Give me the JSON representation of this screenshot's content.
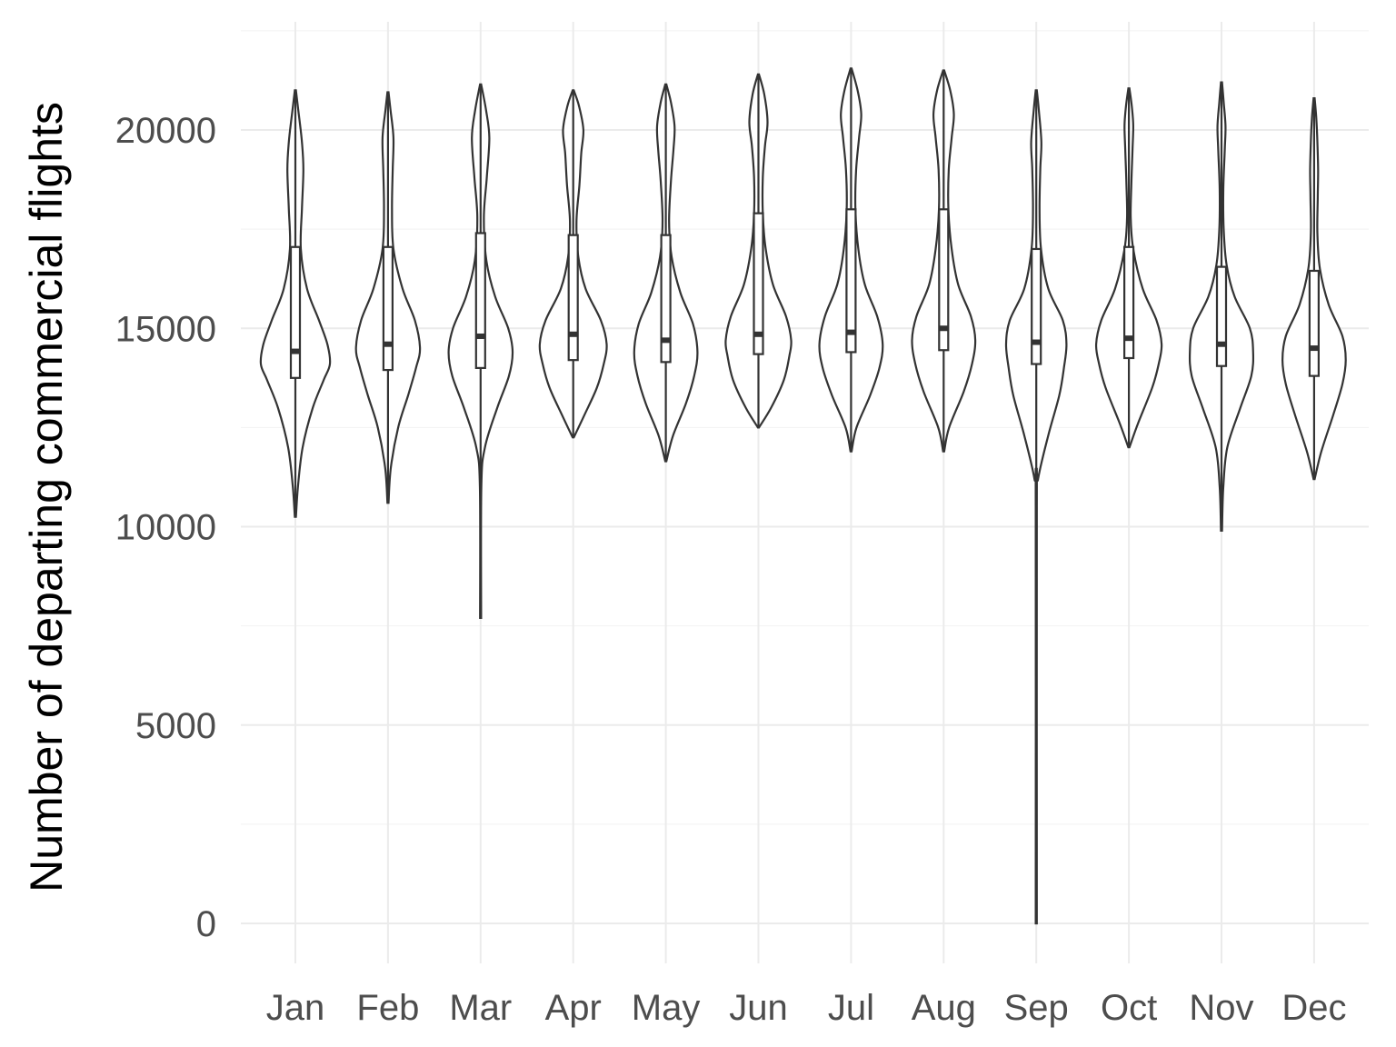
{
  "chart_data": {
    "type": "violin",
    "title": "",
    "xlabel": "",
    "ylabel": "Number of departing commercial flights",
    "ylim": [
      -1000,
      22500
    ],
    "y_ticks": [
      0,
      5000,
      10000,
      15000,
      20000
    ],
    "grid": true,
    "legend": "none",
    "categories": [
      "Jan",
      "Feb",
      "Mar",
      "Apr",
      "May",
      "Jun",
      "Jul",
      "Aug",
      "Sep",
      "Oct",
      "Nov",
      "Dec"
    ],
    "violins": [
      {
        "category": "Jan",
        "min": 10250,
        "max": 21000,
        "q1": 13750,
        "median": 14420,
        "q3": 17050,
        "density": [
          [
            10250,
            0.0
          ],
          [
            11000,
            0.07
          ],
          [
            12000,
            0.2
          ],
          [
            13000,
            0.48
          ],
          [
            13700,
            0.78
          ],
          [
            14100,
            0.95
          ],
          [
            14600,
            0.88
          ],
          [
            15200,
            0.65
          ],
          [
            16000,
            0.32
          ],
          [
            17000,
            0.15
          ],
          [
            18000,
            0.18
          ],
          [
            19000,
            0.22
          ],
          [
            19700,
            0.18
          ],
          [
            20500,
            0.08
          ],
          [
            21000,
            0.0
          ]
        ]
      },
      {
        "category": "Feb",
        "min": 10600,
        "max": 20950,
        "q1": 13950,
        "median": 14600,
        "q3": 17050,
        "density": [
          [
            10600,
            0.0
          ],
          [
            11500,
            0.08
          ],
          [
            12500,
            0.28
          ],
          [
            13300,
            0.55
          ],
          [
            14000,
            0.77
          ],
          [
            14500,
            0.88
          ],
          [
            15200,
            0.74
          ],
          [
            16000,
            0.4
          ],
          [
            17000,
            0.15
          ],
          [
            18000,
            0.11
          ],
          [
            19000,
            0.13
          ],
          [
            19800,
            0.15
          ],
          [
            20500,
            0.07
          ],
          [
            20950,
            0.0
          ]
        ]
      },
      {
        "category": "Mar",
        "min": 7700,
        "max": 21150,
        "q1": 14000,
        "median": 14800,
        "q3": 17400,
        "density": [
          [
            7700,
            0.0
          ],
          [
            11000,
            0.02
          ],
          [
            12000,
            0.12
          ],
          [
            13000,
            0.46
          ],
          [
            13800,
            0.78
          ],
          [
            14400,
            0.88
          ],
          [
            15000,
            0.76
          ],
          [
            15800,
            0.4
          ],
          [
            16700,
            0.16
          ],
          [
            17800,
            0.09
          ],
          [
            18800,
            0.17
          ],
          [
            19800,
            0.24
          ],
          [
            20500,
            0.15
          ],
          [
            21150,
            0.0
          ]
        ]
      },
      {
        "category": "Apr",
        "min": 12250,
        "max": 21000,
        "q1": 14200,
        "median": 14850,
        "q3": 17350,
        "density": [
          [
            12250,
            0.0
          ],
          [
            12800,
            0.3
          ],
          [
            13500,
            0.65
          ],
          [
            14100,
            0.84
          ],
          [
            14600,
            0.92
          ],
          [
            15200,
            0.76
          ],
          [
            16000,
            0.34
          ],
          [
            16800,
            0.14
          ],
          [
            17700,
            0.09
          ],
          [
            18600,
            0.17
          ],
          [
            19400,
            0.22
          ],
          [
            20000,
            0.28
          ],
          [
            20600,
            0.16
          ],
          [
            21000,
            0.0
          ]
        ]
      },
      {
        "category": "May",
        "min": 11650,
        "max": 21150,
        "q1": 14150,
        "median": 14700,
        "q3": 17350,
        "density": [
          [
            11650,
            0.0
          ],
          [
            12300,
            0.2
          ],
          [
            13100,
            0.55
          ],
          [
            13800,
            0.78
          ],
          [
            14400,
            0.87
          ],
          [
            15100,
            0.75
          ],
          [
            15900,
            0.4
          ],
          [
            16800,
            0.16
          ],
          [
            17700,
            0.09
          ],
          [
            18700,
            0.14
          ],
          [
            19500,
            0.21
          ],
          [
            20100,
            0.24
          ],
          [
            20700,
            0.14
          ],
          [
            21150,
            0.0
          ]
        ]
      },
      {
        "category": "Jun",
        "min": 12500,
        "max": 21400,
        "q1": 14350,
        "median": 14850,
        "q3": 17900,
        "density": [
          [
            12500,
            0.0
          ],
          [
            13000,
            0.35
          ],
          [
            13700,
            0.7
          ],
          [
            14300,
            0.85
          ],
          [
            14700,
            0.9
          ],
          [
            15300,
            0.76
          ],
          [
            16100,
            0.4
          ],
          [
            17000,
            0.2
          ],
          [
            17900,
            0.12
          ],
          [
            18800,
            0.12
          ],
          [
            19600,
            0.18
          ],
          [
            20200,
            0.25
          ],
          [
            20900,
            0.16
          ],
          [
            21400,
            0.0
          ]
        ]
      },
      {
        "category": "Jul",
        "min": 11900,
        "max": 21550,
        "q1": 14400,
        "median": 14900,
        "q3": 18000,
        "density": [
          [
            11900,
            0.0
          ],
          [
            12500,
            0.15
          ],
          [
            13300,
            0.52
          ],
          [
            14000,
            0.78
          ],
          [
            14600,
            0.87
          ],
          [
            15300,
            0.72
          ],
          [
            16100,
            0.38
          ],
          [
            17000,
            0.2
          ],
          [
            18000,
            0.12
          ],
          [
            19000,
            0.14
          ],
          [
            19800,
            0.22
          ],
          [
            20400,
            0.28
          ],
          [
            21000,
            0.18
          ],
          [
            21550,
            0.0
          ]
        ]
      },
      {
        "category": "Aug",
        "min": 11900,
        "max": 21500,
        "q1": 14450,
        "median": 15000,
        "q3": 18000,
        "density": [
          [
            11900,
            0.0
          ],
          [
            12500,
            0.15
          ],
          [
            13400,
            0.55
          ],
          [
            14100,
            0.78
          ],
          [
            14700,
            0.87
          ],
          [
            15300,
            0.75
          ],
          [
            16100,
            0.4
          ],
          [
            17000,
            0.22
          ],
          [
            18000,
            0.13
          ],
          [
            19000,
            0.14
          ],
          [
            19800,
            0.22
          ],
          [
            20400,
            0.28
          ],
          [
            21000,
            0.18
          ],
          [
            21500,
            0.0
          ]
        ]
      },
      {
        "category": "Sep",
        "min": 0,
        "max": 21000,
        "q1": 14100,
        "median": 14650,
        "q3": 17000,
        "density": [
          [
            0,
            0.0
          ],
          [
            10500,
            0.01
          ],
          [
            11200,
            0.05
          ],
          [
            12300,
            0.33
          ],
          [
            13300,
            0.63
          ],
          [
            14000,
            0.76
          ],
          [
            14600,
            0.83
          ],
          [
            15200,
            0.73
          ],
          [
            16000,
            0.33
          ],
          [
            17000,
            0.13
          ],
          [
            18000,
            0.09
          ],
          [
            19000,
            0.11
          ],
          [
            19700,
            0.14
          ],
          [
            20500,
            0.07
          ],
          [
            21000,
            0.0
          ]
        ]
      },
      {
        "category": "Oct",
        "min": 12000,
        "max": 21050,
        "q1": 14250,
        "median": 14750,
        "q3": 17050,
        "density": [
          [
            12000,
            0.0
          ],
          [
            12600,
            0.25
          ],
          [
            13500,
            0.64
          ],
          [
            14100,
            0.82
          ],
          [
            14600,
            0.9
          ],
          [
            15200,
            0.76
          ],
          [
            16000,
            0.38
          ],
          [
            17000,
            0.12
          ],
          [
            17800,
            0.05
          ],
          [
            18700,
            0.07
          ],
          [
            19500,
            0.1
          ],
          [
            20100,
            0.12
          ],
          [
            20600,
            0.08
          ],
          [
            21050,
            0.0
          ]
        ]
      },
      {
        "category": "Nov",
        "min": 9900,
        "max": 21200,
        "q1": 14050,
        "median": 14600,
        "q3": 16550,
        "density": [
          [
            9900,
            0.0
          ],
          [
            11000,
            0.05
          ],
          [
            12000,
            0.16
          ],
          [
            13000,
            0.52
          ],
          [
            13800,
            0.82
          ],
          [
            14400,
            0.87
          ],
          [
            15000,
            0.78
          ],
          [
            15800,
            0.36
          ],
          [
            16600,
            0.14
          ],
          [
            17500,
            0.06
          ],
          [
            18500,
            0.05
          ],
          [
            19500,
            0.09
          ],
          [
            20100,
            0.11
          ],
          [
            20700,
            0.06
          ],
          [
            21200,
            0.0
          ]
        ]
      },
      {
        "category": "Dec",
        "min": 11200,
        "max": 20800,
        "q1": 13800,
        "median": 14500,
        "q3": 16450,
        "density": [
          [
            11200,
            0.0
          ],
          [
            11900,
            0.2
          ],
          [
            12800,
            0.52
          ],
          [
            13600,
            0.78
          ],
          [
            14200,
            0.87
          ],
          [
            14800,
            0.78
          ],
          [
            15600,
            0.4
          ],
          [
            16500,
            0.16
          ],
          [
            17400,
            0.09
          ],
          [
            18300,
            0.1
          ],
          [
            19000,
            0.11
          ],
          [
            19700,
            0.09
          ],
          [
            20300,
            0.06
          ],
          [
            20800,
            0.0
          ]
        ]
      }
    ]
  }
}
